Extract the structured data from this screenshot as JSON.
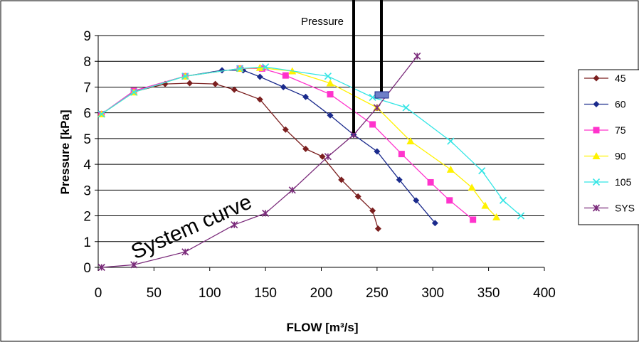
{
  "chart_data": {
    "type": "line",
    "title": "Pressure",
    "xlabel": "FLOW [m³/s]",
    "ylabel": "Pressure [kPa]",
    "xlim": [
      0,
      400
    ],
    "ylim": [
      0,
      9
    ],
    "xticks": [
      "0",
      "50",
      "100",
      "150",
      "200",
      "250",
      "300",
      "350",
      "400"
    ],
    "yticks": [
      "0",
      "1",
      "2",
      "3",
      "4",
      "5",
      "6",
      "7",
      "8",
      "9"
    ],
    "grid": "horizontal",
    "legend_position": "right",
    "annotation": "System curve",
    "series": [
      {
        "name": "45",
        "color": "#7B1F1F",
        "marker": "diamond",
        "x": [
          3,
          32,
          60,
          82,
          105,
          122,
          145,
          168,
          186,
          201,
          218,
          233,
          246,
          251
        ],
        "y": [
          5.95,
          6.82,
          7.12,
          7.15,
          7.12,
          6.9,
          6.52,
          5.35,
          4.6,
          4.3,
          3.4,
          2.75,
          2.2,
          1.5
        ]
      },
      {
        "name": "60",
        "color": "#1A2A8C",
        "marker": "diamond",
        "x": [
          3,
          32,
          78,
          111,
          130,
          145,
          166,
          186,
          208,
          229,
          250,
          270,
          285,
          302
        ],
        "y": [
          5.95,
          6.85,
          7.42,
          7.65,
          7.65,
          7.4,
          7.0,
          6.62,
          5.9,
          5.15,
          4.5,
          3.4,
          2.6,
          1.72
        ]
      },
      {
        "name": "75",
        "color": "#FF33CC",
        "marker": "square",
        "x": [
          3,
          32,
          78,
          127,
          147,
          168,
          208,
          246,
          272,
          298,
          315,
          336
        ],
        "y": [
          5.95,
          6.85,
          7.42,
          7.72,
          7.72,
          7.45,
          6.72,
          5.55,
          4.4,
          3.3,
          2.6,
          1.85
        ]
      },
      {
        "name": "90",
        "color": "#FFF200",
        "marker": "triangle",
        "x": [
          3,
          32,
          78,
          127,
          145,
          174,
          208,
          250,
          280,
          316,
          335,
          347,
          357
        ],
        "y": [
          5.95,
          6.8,
          7.42,
          7.72,
          7.75,
          7.62,
          7.15,
          6.2,
          4.9,
          3.8,
          3.1,
          2.4,
          1.95
        ]
      },
      {
        "name": "105",
        "color": "#33E5E5",
        "marker": "x",
        "x": [
          3,
          32,
          78,
          127,
          150,
          206,
          246,
          276,
          316,
          344,
          363,
          379
        ],
        "y": [
          5.95,
          6.8,
          7.42,
          7.72,
          7.78,
          7.42,
          6.6,
          6.2,
          4.9,
          3.75,
          2.6,
          2.0
        ]
      },
      {
        "name": "SYS",
        "color": "#7A2A7A",
        "marker": "star",
        "x": [
          3,
          32,
          78,
          122,
          150,
          174,
          206,
          229,
          250,
          286
        ],
        "y": [
          0.0,
          0.1,
          0.6,
          1.65,
          2.1,
          3.0,
          4.3,
          5.15,
          6.2,
          8.2
        ]
      }
    ]
  }
}
